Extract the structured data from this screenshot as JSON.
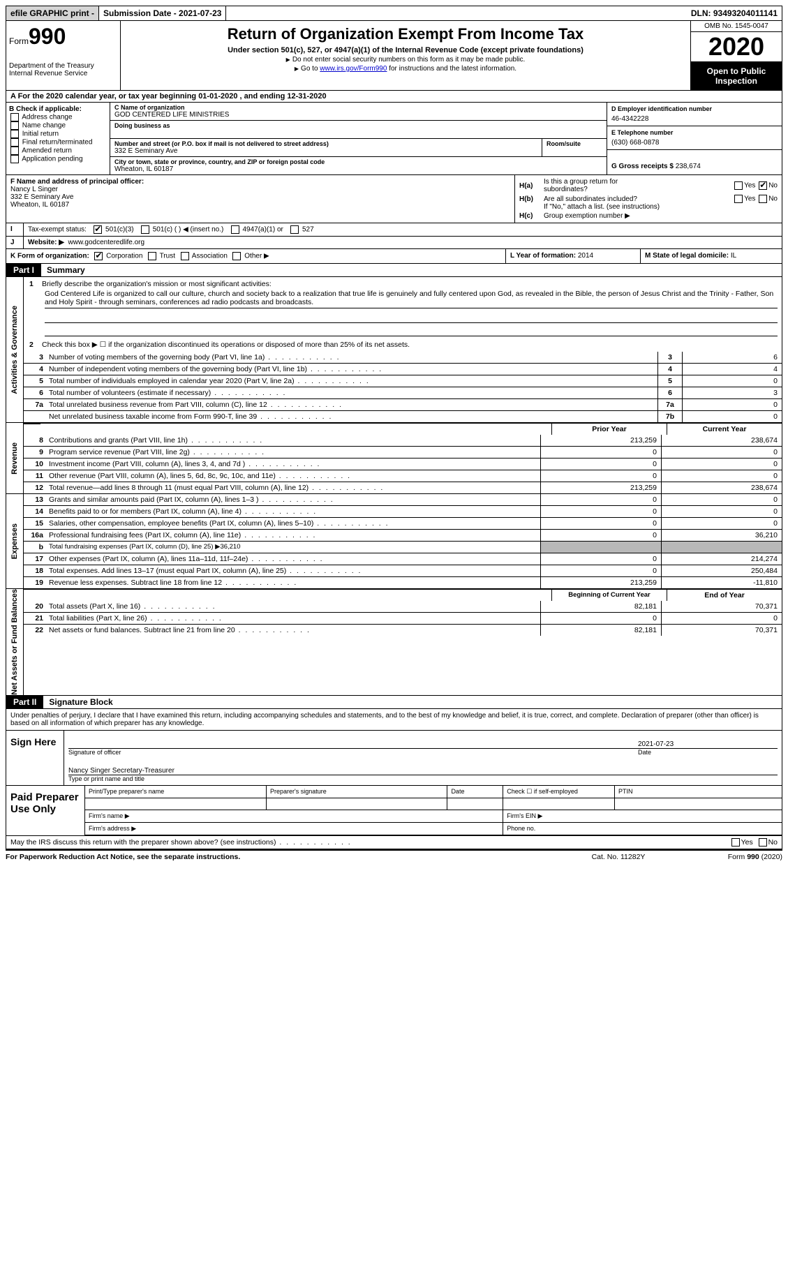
{
  "topbar": {
    "efile": "efile GRAPHIC print -",
    "submission": "Submission Date - 2021-07-23",
    "dln": "DLN: 93493204011141"
  },
  "header": {
    "form_label": "Form",
    "form_number": "990",
    "dept": "Department of the Treasury\nInternal Revenue Service",
    "title": "Return of Organization Exempt From Income Tax",
    "subtitle": "Under section 501(c), 527, or 4947(a)(1) of the Internal Revenue Code (except private foundations)",
    "instr1": "Do not enter social security numbers on this form as it may be made public.",
    "instr2_pre": "Go to ",
    "instr2_link": "www.irs.gov/Form990",
    "instr2_post": " for instructions and the latest information.",
    "omb": "OMB No. 1545-0047",
    "tax_year": "2020",
    "open": "Open to Public Inspection"
  },
  "row_a": "A For the 2020 calendar year, or tax year beginning 01-01-2020   , and ending 12-31-2020",
  "col_b": {
    "header": "B Check if applicable:",
    "items": [
      "Address change",
      "Name change",
      "Initial return",
      "Final return/terminated",
      "Amended return",
      "Application pending"
    ]
  },
  "org": {
    "c_label": "C Name of organization",
    "name": "GOD CENTERED LIFE MINISTRIES",
    "dba": "Doing business as",
    "addr_label": "Number and street (or P.O. box if mail is not delivered to street address)",
    "room_label": "Room/suite",
    "street": "332 E Seminary Ave",
    "city_label": "City or town, state or province, country, and ZIP or foreign postal code",
    "city": "Wheaton, IL  60187"
  },
  "col_d": {
    "d_label": "D Employer identification number",
    "ein": "46-4342228",
    "e_label": "E Telephone number",
    "phone": "(630) 668-0878",
    "g_label": "G Gross receipts $ ",
    "gross": "238,674"
  },
  "block2": {
    "f_label": "F Name and address of principal officer:",
    "f_name": "Nancy L Singer",
    "f_street": "332 E Seminary Ave",
    "f_city": "Wheaton, IL  60187",
    "ha_label": "Is this a group return for",
    "ha_label2": "subordinates?",
    "hb_label": "Are all subordinates included?",
    "h_note": "If \"No,\" attach a list. (see instructions)",
    "hc_label": "Group exemption number ▶"
  },
  "row_i": {
    "label": "Tax-exempt status:",
    "opts": [
      "501(c)(3)",
      "501(c) (  ) ◀ (insert no.)",
      "4947(a)(1) or",
      "527"
    ]
  },
  "row_j": {
    "label": "Website: ▶",
    "value": "www.godcenteredlife.org"
  },
  "row_k": {
    "k_label": "K Form of organization:",
    "k_opts": [
      "Corporation",
      "Trust",
      "Association",
      "Other ▶"
    ],
    "l_label": "L Year of formation: ",
    "l_val": "2014",
    "m_label": "M State of legal domicile: ",
    "m_val": "IL"
  },
  "part1": {
    "label": "Part I",
    "title": "Summary"
  },
  "governance": {
    "tab": "Activities & Governance",
    "q1_label": "1",
    "q1": "Briefly describe the organization's mission or most significant activities:",
    "q1_ans": "God Centered Life is organized to call our culture, church and society back to a realization that true life is genuinely and fully centered upon God, as revealed in the Bible, the person of Jesus Christ and the Trinity - Father, Son and Holy Spirit - through seminars, conferences ad radio podcasts and broadcasts.",
    "q2_label": "2",
    "q2": "Check this box ▶ ☐  if the organization discontinued its operations or disposed of more than 25% of its net assets.",
    "lines": [
      {
        "n": "3",
        "t": "Number of voting members of the governing body (Part VI, line 1a)",
        "box": "3",
        "v": "6"
      },
      {
        "n": "4",
        "t": "Number of independent voting members of the governing body (Part VI, line 1b)",
        "box": "4",
        "v": "4"
      },
      {
        "n": "5",
        "t": "Total number of individuals employed in calendar year 2020 (Part V, line 2a)",
        "box": "5",
        "v": "0"
      },
      {
        "n": "6",
        "t": "Total number of volunteers (estimate if necessary)",
        "box": "6",
        "v": "3"
      },
      {
        "n": "7a",
        "t": "Total unrelated business revenue from Part VIII, column (C), line 12",
        "box": "7a",
        "v": "0"
      },
      {
        "n": "",
        "t": "Net unrelated business taxable income from Form 990-T, line 39",
        "box": "7b",
        "v": "0"
      }
    ]
  },
  "revenue": {
    "tab": "Revenue",
    "hdr_prior": "Prior Year",
    "hdr_curr": "Current Year",
    "lines": [
      {
        "n": "8",
        "t": "Contributions and grants (Part VIII, line 1h)",
        "p": "213,259",
        "c": "238,674"
      },
      {
        "n": "9",
        "t": "Program service revenue (Part VIII, line 2g)",
        "p": "0",
        "c": "0"
      },
      {
        "n": "10",
        "t": "Investment income (Part VIII, column (A), lines 3, 4, and 7d )",
        "p": "0",
        "c": "0"
      },
      {
        "n": "11",
        "t": "Other revenue (Part VIII, column (A), lines 5, 6d, 8c, 9c, 10c, and 11e)",
        "p": "0",
        "c": "0"
      },
      {
        "n": "12",
        "t": "Total revenue—add lines 8 through 11 (must equal Part VIII, column (A), line 12)",
        "p": "213,259",
        "c": "238,674"
      }
    ]
  },
  "expenses": {
    "tab": "Expenses",
    "lines": [
      {
        "n": "13",
        "t": "Grants and similar amounts paid (Part IX, column (A), lines 1–3 )",
        "p": "0",
        "c": "0"
      },
      {
        "n": "14",
        "t": "Benefits paid to or for members (Part IX, column (A), line 4)",
        "p": "0",
        "c": "0"
      },
      {
        "n": "15",
        "t": "Salaries, other compensation, employee benefits (Part IX, column (A), lines 5–10)",
        "p": "0",
        "c": "0"
      },
      {
        "n": "16a",
        "t": "Professional fundraising fees (Part IX, column (A), line 11e)",
        "p": "0",
        "c": "36,210"
      },
      {
        "n": "b",
        "t": "Total fundraising expenses (Part IX, column (D), line 25) ▶36,210",
        "p": "grey",
        "c": "grey"
      },
      {
        "n": "17",
        "t": "Other expenses (Part IX, column (A), lines 11a–11d, 11f–24e)",
        "p": "0",
        "c": "214,274"
      },
      {
        "n": "18",
        "t": "Total expenses. Add lines 13–17 (must equal Part IX, column (A), line 25)",
        "p": "0",
        "c": "250,484"
      },
      {
        "n": "19",
        "t": "Revenue less expenses. Subtract line 18 from line 12",
        "p": "213,259",
        "c": "-11,810"
      }
    ]
  },
  "netassets": {
    "tab": "Net Assets or Fund Balances",
    "hdr_beg": "Beginning of Current Year",
    "hdr_end": "End of Year",
    "lines": [
      {
        "n": "20",
        "t": "Total assets (Part X, line 16)",
        "p": "82,181",
        "c": "70,371"
      },
      {
        "n": "21",
        "t": "Total liabilities (Part X, line 26)",
        "p": "0",
        "c": "0"
      },
      {
        "n": "22",
        "t": "Net assets or fund balances. Subtract line 21 from line 20",
        "p": "82,181",
        "c": "70,371"
      }
    ]
  },
  "part2": {
    "label": "Part II",
    "title": "Signature Block"
  },
  "sig": {
    "intro": "Under penalties of perjury, I declare that I have examined this return, including accompanying schedules and statements, and to the best of my knowledge and belief, it is true, correct, and complete. Declaration of preparer (other than officer) is based on all information of which preparer has any knowledge.",
    "sign_here": "Sign Here",
    "sig_label": "Signature of officer",
    "date_label": "Date",
    "date": "2021-07-23",
    "name": "Nancy Singer  Secretary-Treasurer",
    "name_label": "Type or print name and title"
  },
  "prep": {
    "label": "Paid Preparer Use Only",
    "h1": "Print/Type preparer's name",
    "h2": "Preparer's signature",
    "h3": "Date",
    "h4": "Check ☐ if self-employed",
    "h5": "PTIN",
    "firm_name": "Firm's name   ▶",
    "firm_ein": "Firm's EIN ▶",
    "firm_addr": "Firm's address ▶",
    "phone": "Phone no."
  },
  "discuss": {
    "q": "May the IRS discuss this return with the preparer shown above? (see instructions)",
    "yes": "Yes",
    "no": "No"
  },
  "footer": {
    "l": "For Paperwork Reduction Act Notice, see the separate instructions.",
    "c": "Cat. No. 11282Y",
    "r": "Form 990 (2020)"
  }
}
